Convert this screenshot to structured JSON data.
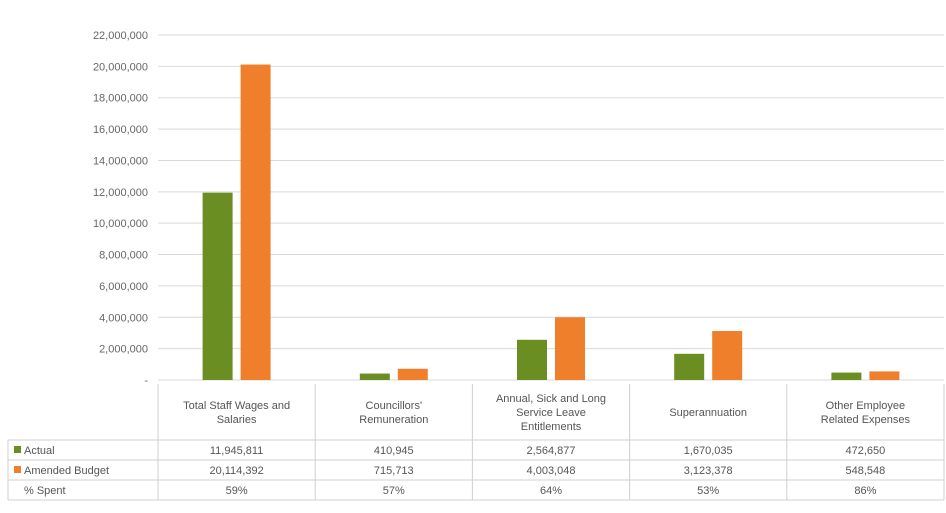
{
  "chart_data": {
    "type": "bar",
    "categories": [
      [
        "Total Staff Wages and",
        "Salaries"
      ],
      [
        "Councillors'",
        "Remuneration"
      ],
      [
        "Annual, Sick and Long",
        "Service Leave",
        "Entitlements"
      ],
      [
        "Superannuation"
      ],
      [
        "Other Employee",
        "Related Expenses"
      ]
    ],
    "series": [
      {
        "name": "Actual",
        "values": [
          11945811,
          410945,
          2564877,
          1670035,
          472650
        ],
        "color": "#6b8e23"
      },
      {
        "name": "Amended Budget",
        "values": [
          20114392,
          715713,
          4003048,
          3123378,
          548548
        ],
        "color": "#f07f2c"
      }
    ],
    "table": {
      "rows": [
        {
          "label": "Actual",
          "cells": [
            "11,945,811",
            "410,945",
            "2,564,877",
            "1,670,035",
            "472,650"
          ]
        },
        {
          "label": "Amended Budget",
          "cells": [
            "20,114,392",
            "715,713",
            "4,003,048",
            "3,123,378",
            "548,548"
          ]
        },
        {
          "label": "% Spent",
          "cells": [
            "59%",
            "57%",
            "64%",
            "53%",
            "86%"
          ]
        }
      ]
    },
    "y_ticks": [
      "22,000,000",
      "20,000,000",
      "18,000,000",
      "16,000,000",
      "14,000,000",
      "12,000,000",
      "10,000,000",
      "8,000,000",
      "6,000,000",
      "4,000,000",
      "2,000,000",
      "-"
    ],
    "ylim": [
      0,
      22000000
    ],
    "grid": true,
    "legend": "data-table-left"
  }
}
